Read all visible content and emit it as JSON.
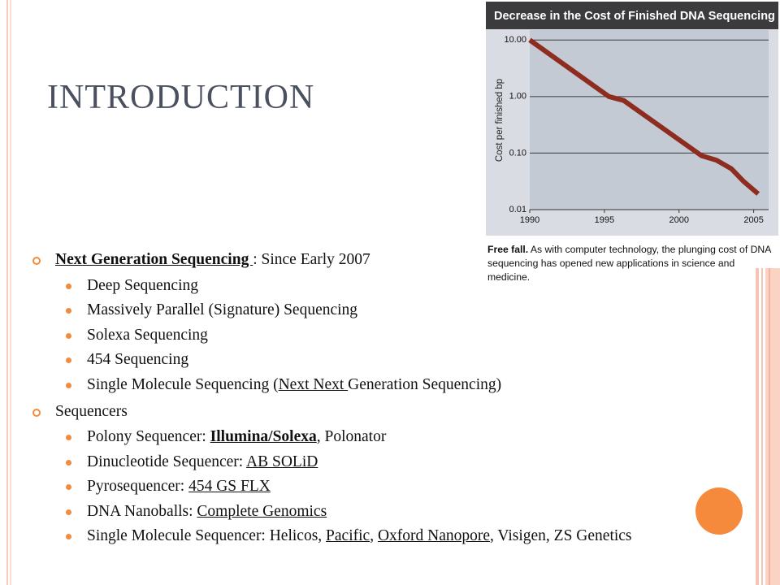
{
  "slide": {
    "title": "INTRODUCTION",
    "bullets": [
      {
        "text": [
          "Next Generation Sequencing ",
          ": Since Early 2007"
        ],
        "sub": [
          [
            "Deep Sequencing"
          ],
          [
            "Massively Parallel (Signature) Sequencing"
          ],
          [
            "Solexa Sequencing"
          ],
          [
            "454 Sequencing"
          ],
          [
            "Single Molecule Sequencing (",
            "Next Next ",
            "Generation Sequencing)"
          ]
        ]
      },
      {
        "text": [
          "Sequencers"
        ],
        "sub": [
          [
            "Polony Sequencer: ",
            "Illumina/Solexa",
            ",  Polonator"
          ],
          [
            "Dinucleotide Sequencer: ",
            "AB SOLiD"
          ],
          [
            "Pyrosequencer: ",
            "454 GS FLX"
          ],
          [
            "DNA Nanoballs: ",
            "Complete Genomics"
          ],
          [
            "Single Molecule Sequencer: Helicos, ",
            "Pacific",
            ", ",
            "Oxford Nanopore",
            ", Visigen, ZS Genetics"
          ]
        ]
      }
    ]
  },
  "chart_data": {
    "type": "line",
    "title": "Decrease in the Cost of Finished DNA Sequencing",
    "y_label": "Cost per finished bp",
    "caption": [
      "Free fall.",
      " As with computer technology, the plunging cost of DNA sequencing has opened new applications in science and medicine."
    ],
    "x": [
      1990,
      1995.3,
      1996.3,
      2001.5,
      2002.5,
      2003.5,
      2004.3,
      2005.3
    ],
    "values": [
      10,
      1.0,
      0.85,
      0.09,
      0.075,
      0.053,
      0.032,
      0.019
    ],
    "color": "#8e2c20",
    "log_y": true,
    "grid": true,
    "xlim": [
      1990,
      2006
    ],
    "xticks": [
      1990,
      1995,
      2000,
      2005
    ],
    "ylim": [
      0.01,
      15
    ],
    "yticks": [
      {
        "value": 10,
        "label": "10.00"
      },
      {
        "value": 1,
        "label": "1.00"
      },
      {
        "value": 0.1,
        "label": "0.10"
      },
      {
        "value": 0.01,
        "label": "0.01"
      }
    ]
  }
}
